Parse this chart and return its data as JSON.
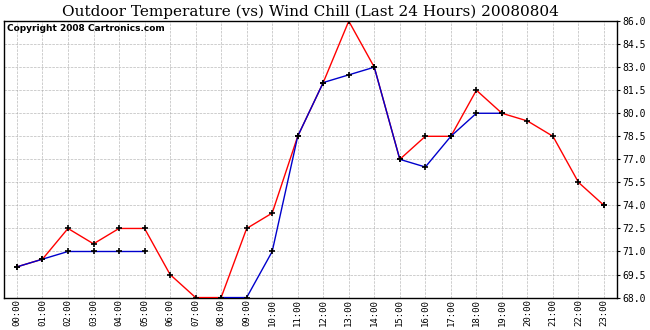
{
  "title": "Outdoor Temperature (vs) Wind Chill (Last 24 Hours) 20080804",
  "copyright": "Copyright 2008 Cartronics.com",
  "hours": [
    "00:00",
    "01:00",
    "02:00",
    "03:00",
    "04:00",
    "05:00",
    "06:00",
    "07:00",
    "08:00",
    "09:00",
    "10:00",
    "11:00",
    "12:00",
    "13:00",
    "14:00",
    "15:00",
    "16:00",
    "17:00",
    "18:00",
    "19:00",
    "20:00",
    "21:00",
    "22:00",
    "23:00"
  ],
  "temp": [
    70.0,
    70.5,
    72.5,
    71.5,
    72.5,
    72.5,
    69.5,
    68.0,
    68.0,
    72.5,
    73.5,
    78.5,
    82.0,
    86.0,
    83.0,
    77.0,
    78.5,
    78.5,
    81.5,
    80.0,
    79.5,
    78.5,
    75.5,
    74.0
  ],
  "wind_chill": [
    70.0,
    70.5,
    71.0,
    71.0,
    71.0,
    71.0,
    null,
    null,
    68.0,
    68.0,
    71.0,
    78.5,
    82.0,
    82.5,
    83.0,
    77.0,
    76.5,
    78.5,
    80.0,
    80.0,
    null,
    null,
    null,
    74.0
  ],
  "temp_color": "#ff0000",
  "wind_chill_color": "#0000cc",
  "ylim": [
    68.0,
    86.0
  ],
  "yticks": [
    68.0,
    69.5,
    71.0,
    72.5,
    74.0,
    75.5,
    77.0,
    78.5,
    80.0,
    81.5,
    83.0,
    84.5,
    86.0
  ],
  "background_color": "#ffffff",
  "grid_color": "#aaaaaa",
  "title_fontsize": 11,
  "copyright_fontsize": 6.5
}
